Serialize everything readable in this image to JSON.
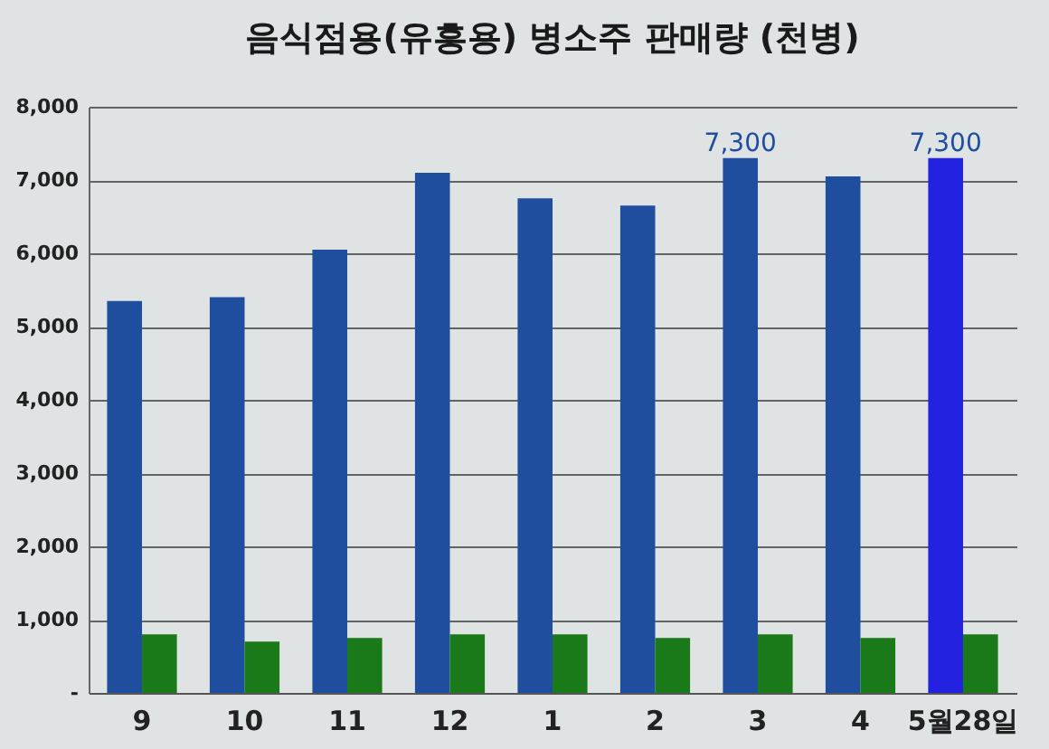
{
  "chart_data": {
    "type": "bar",
    "title": "음식점용(유흥용) 병소주 판매량 (천병)",
    "categories": [
      "9",
      "10",
      "11",
      "12",
      "1",
      "2",
      "3",
      "4",
      "5월28일"
    ],
    "series": [
      {
        "color": "#1f4e9f",
        "colors": [
          "#1f4e9f",
          "#1f4e9f",
          "#1f4e9f",
          "#1f4e9f",
          "#1f4e9f",
          "#1f4e9f",
          "#1f4e9f",
          "#1f4e9f",
          "#2222e0"
        ],
        "values": [
          5350,
          5400,
          6050,
          7100,
          6750,
          6650,
          7300,
          7050,
          7300
        ],
        "value_labels": [
          null,
          null,
          null,
          null,
          null,
          null,
          "7,300",
          null,
          "7,300"
        ]
      },
      {
        "color": "#1a7a1a",
        "values": [
          800,
          700,
          750,
          800,
          800,
          750,
          800,
          750,
          800
        ]
      }
    ],
    "ylim": [
      0,
      8000
    ],
    "yticks": [
      {
        "value": 0,
        "label": "-"
      },
      {
        "value": 1000,
        "label": "1,000"
      },
      {
        "value": 2000,
        "label": "2,000"
      },
      {
        "value": 3000,
        "label": "3,000"
      },
      {
        "value": 4000,
        "label": "4,000"
      },
      {
        "value": 5000,
        "label": "5,000"
      },
      {
        "value": 6000,
        "label": "6,000"
      },
      {
        "value": 7000,
        "label": "7,000"
      },
      {
        "value": 8000,
        "label": "8,000"
      }
    ],
    "grid": "y"
  }
}
